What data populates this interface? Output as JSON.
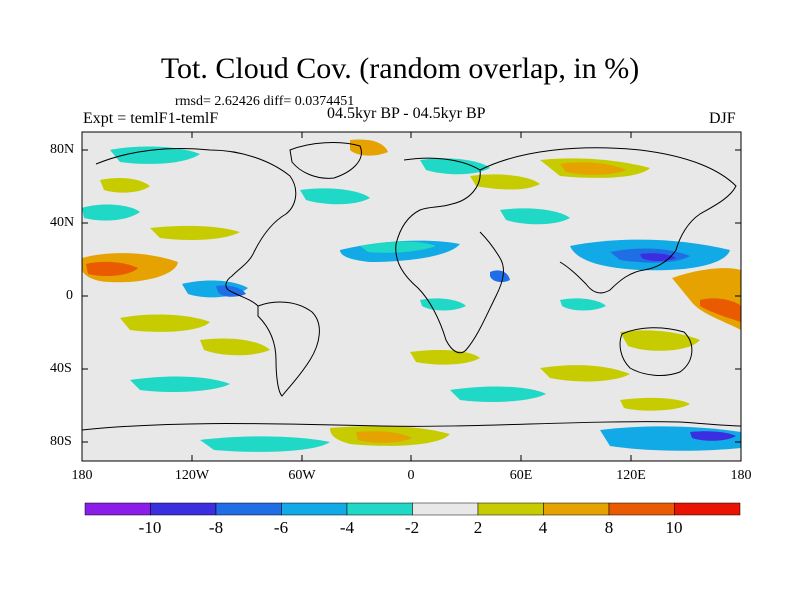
{
  "title": "Tot. Cloud Cov. (random overlap, in %)",
  "stats": "rmsd= 2.62426 diff= 0.0374451",
  "experiment": "Expt = temlF1-temlF",
  "period": "04.5kyr BP - 04.5kyr BP",
  "season": "DJF",
  "lat_labels": [
    "80N",
    "40N",
    "0",
    "40S",
    "80S"
  ],
  "lon_labels": [
    "180",
    "120W",
    "60W",
    "0",
    "60E",
    "120E",
    "180"
  ],
  "colorbar": {
    "labels": [
      "-10",
      "-8",
      "-6",
      "-4",
      "-2",
      "2",
      "4",
      "8",
      "10"
    ],
    "colors": [
      "#8a1ee8",
      "#3a2ee0",
      "#1f6ee6",
      "#11a9e6",
      "#20d8c6",
      "#e8e8e8",
      "#c6cc00",
      "#e5a200",
      "#ea5a00",
      "#e81300"
    ]
  },
  "map_colors": {
    "neutral": "#e8e8e8",
    "coast": "#000000"
  }
}
